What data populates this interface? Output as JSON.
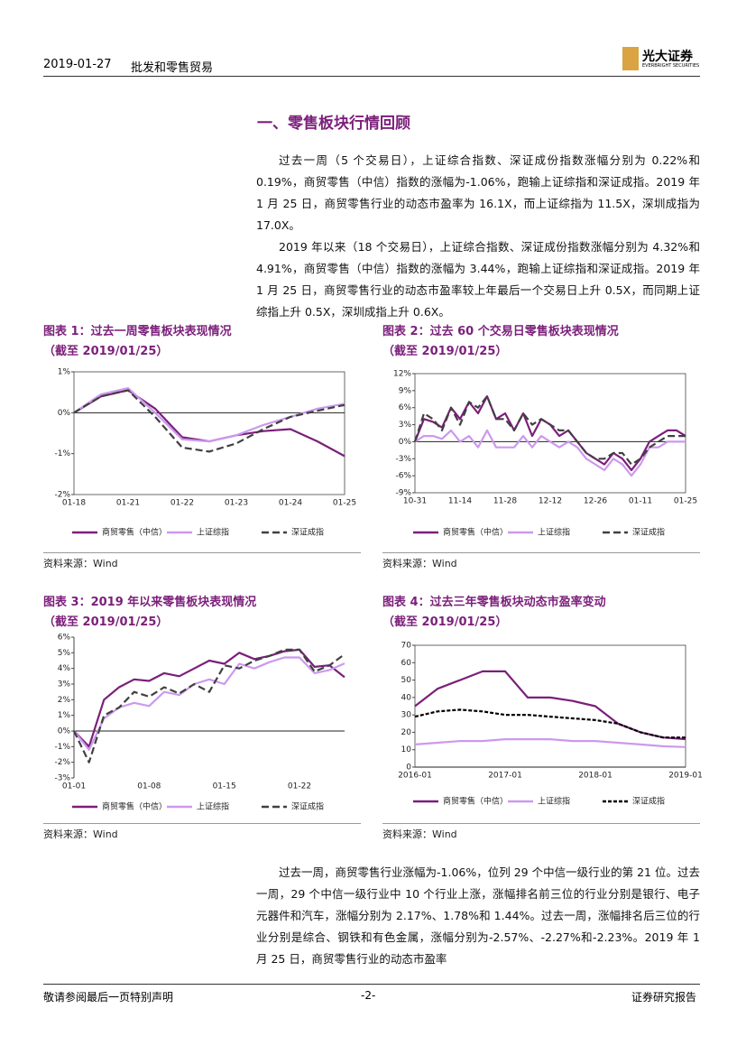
{
  "header": {
    "date": "2019-01-27",
    "sector": "批发和零售贸易",
    "logo": "光大证券",
    "logo_en": "EVERBRIGHT SECURITIES"
  },
  "section": {
    "title": "一、零售板块行情回顾"
  },
  "paragraphs": [
    "过去一周（5 个交易日），上证综合指数、深证成份指数涨幅分别为 0.22%和 0.19%，商贸零售（中信）指数的涨幅为-1.06%，跑输上证综指和深证成指。2019 年 1 月 25 日，商贸零售行业的动态市盈率为 16.1X，而上证综指为 11.5X，深圳成指为 17.0X。",
    "2019 年以来（18 个交易日），上证综合指数、深证成份指数涨幅分别为 4.32%和 4.91%，商贸零售（中信）指数的涨幅为 3.44%，跑输上证综指和深证成指。2019 年 1 月 25 日，商贸零售行业的动态市盈率较上年最后一个交易日上升 0.5X，而同期上证综指上升 0.5X，深圳成指上升 0.6X。",
    "过去一周，商贸零售行业涨幅为-1.06%，位列 29 个中信一级行业的第 21 位。过去一周，29 个中信一级行业中 10 个行业上涨，涨幅排名前三位的行业分别是银行、电子元器件和汽车，涨幅分别为 2.17%、1.78%和 1.44%。过去一周，涨幅排名后三位的行业分别是综合、钢铁和有色金属，涨幅分别为-2.57%、-2.27%和-2.23%。2019 年 1 月 25 日，商贸零售行业的动态市盈率"
  ],
  "chart_data": [
    {
      "type": "line",
      "title": "图表 1：过去一周零售板块表现情况",
      "subtitle": "（截至 2019/01/25）",
      "source": "资料来源：Wind",
      "frame": true,
      "categories": [
        "01-18",
        null,
        "01-21",
        null,
        "01-22",
        null,
        "01-23",
        null,
        "01-24",
        null,
        "01-25"
      ],
      "ylim": [
        -2,
        1
      ],
      "yticks": [
        {
          "value": -2,
          "label": "-2%"
        },
        {
          "value": -1,
          "label": "-1%"
        },
        {
          "value": 0,
          "label": "0%"
        },
        {
          "value": 1,
          "label": "1%"
        }
      ],
      "series": [
        {
          "name": "商贸零售（中信）",
          "color": "#7b1f7a",
          "style": "solid",
          "values": [
            0,
            0.4,
            0.55,
            0.1,
            -0.6,
            -0.7,
            -0.55,
            -0.45,
            -0.4,
            -0.7,
            -1.06
          ]
        },
        {
          "name": "上证综指",
          "color": "#cc99ee",
          "style": "solid",
          "values": [
            0,
            0.45,
            0.6,
            0,
            -0.65,
            -0.7,
            -0.55,
            -0.3,
            -0.1,
            0.1,
            0.22
          ]
        },
        {
          "name": "深证成指",
          "color": "#404040",
          "style": "dashed",
          "values": [
            0,
            0.4,
            0.55,
            -0.1,
            -0.85,
            -0.95,
            -0.75,
            -0.4,
            -0.1,
            0.05,
            0.19
          ]
        }
      ]
    },
    {
      "type": "line",
      "title": "图表 2：过去 60 个交易日零售板块表现情况",
      "subtitle": "（截至 2019/01/25）",
      "source": "资料来源：Wind",
      "frame": true,
      "categories": [
        "10-31",
        null,
        null,
        null,
        null,
        "11-14",
        null,
        null,
        null,
        null,
        "11-28",
        null,
        null,
        null,
        null,
        "12-12",
        null,
        null,
        null,
        null,
        "12-26",
        null,
        null,
        null,
        null,
        "01-11",
        null,
        null,
        null,
        null,
        "01-25"
      ],
      "ylim": [
        -9,
        12
      ],
      "yticks": [
        {
          "value": -9,
          "label": "-9%"
        },
        {
          "value": -6,
          "label": "-6%"
        },
        {
          "value": -3,
          "label": "-3%"
        },
        {
          "value": 0,
          "label": "0%"
        },
        {
          "value": 3,
          "label": "3%"
        },
        {
          "value": 6,
          "label": "6%"
        },
        {
          "value": 9,
          "label": "9%"
        },
        {
          "value": 12,
          "label": "12%"
        }
      ],
      "series": [
        {
          "name": "商贸零售（中信）",
          "color": "#7b1f7a",
          "style": "solid",
          "values": [
            0,
            4,
            3.5,
            2.5,
            6,
            4,
            7,
            5,
            8,
            4,
            5,
            2,
            5,
            1,
            4,
            3,
            1,
            2,
            0,
            -2,
            -3,
            -4,
            -2,
            -3,
            -5,
            -3,
            0,
            1,
            2,
            2,
            1
          ]
        },
        {
          "name": "上证综指",
          "color": "#cc99ee",
          "style": "solid",
          "values": [
            0,
            1,
            1,
            0.5,
            2,
            0,
            1,
            -1,
            2,
            -1,
            -1,
            -1,
            1,
            -1,
            1,
            0,
            -1,
            0,
            -1,
            -3,
            -4,
            -5,
            -3,
            -4,
            -6,
            -4,
            -1,
            -1,
            0,
            0,
            0
          ]
        },
        {
          "name": "深证成指",
          "color": "#404040",
          "style": "dashed",
          "values": [
            0,
            5,
            4,
            2,
            6,
            3,
            7,
            6,
            8,
            4,
            4,
            2,
            5,
            3,
            4,
            3,
            2,
            2,
            0,
            -2,
            -3,
            -3,
            -2,
            -2,
            -4,
            -3,
            -1,
            0,
            1,
            1,
            1
          ]
        }
      ]
    },
    {
      "type": "line",
      "title": "图表 3：2019 年以来零售板块表现情况",
      "subtitle": "（截至 2019/01/25）",
      "source": "资料来源：Wind",
      "frame": false,
      "categories": [
        "01-01",
        null,
        null,
        null,
        null,
        "01-08",
        null,
        null,
        null,
        null,
        "01-15",
        null,
        null,
        null,
        null,
        "01-22",
        null,
        null,
        null
      ],
      "ylim": [
        -3,
        6
      ],
      "yticks": [
        {
          "value": -3,
          "label": "-3%"
        },
        {
          "value": -2,
          "label": "-2%"
        },
        {
          "value": -1,
          "label": "-1%"
        },
        {
          "value": 0,
          "label": "0%"
        },
        {
          "value": 1,
          "label": "1%"
        },
        {
          "value": 2,
          "label": "2%"
        },
        {
          "value": 3,
          "label": "3%"
        },
        {
          "value": 4,
          "label": "4%"
        },
        {
          "value": 5,
          "label": "5%"
        },
        {
          "value": 6,
          "label": "6%"
        }
      ],
      "series": [
        {
          "name": "商贸零售（中信）",
          "color": "#7b1f7a",
          "style": "solid",
          "values": [
            0,
            -1,
            2,
            2.8,
            3.3,
            3.2,
            3.7,
            3.5,
            4,
            4.5,
            4.3,
            5,
            4.6,
            4.8,
            5.1,
            5.2,
            4.1,
            4.2,
            3.44
          ]
        },
        {
          "name": "上证综指",
          "color": "#cc99ee",
          "style": "solid",
          "values": [
            0,
            -1.2,
            0.8,
            1.5,
            1.8,
            1.6,
            2.5,
            2.3,
            3,
            3.3,
            3,
            4.3,
            4,
            4.4,
            4.7,
            4.7,
            3.7,
            3.9,
            4.32
          ]
        },
        {
          "name": "深证成指",
          "color": "#404040",
          "style": "dashed",
          "values": [
            0,
            -2,
            1,
            1.5,
            2.5,
            2.2,
            2.8,
            2.4,
            3,
            2.5,
            4.2,
            4,
            4.5,
            4.8,
            5.2,
            5.2,
            3.8,
            4.2,
            4.91
          ]
        }
      ]
    },
    {
      "type": "line",
      "title": "图表 4：过去三年零售板块动态市盈率变动",
      "subtitle": "（截至 2019/01/25）",
      "source": "资料来源：Wind",
      "frame": true,
      "categories": [
        "2016-01",
        null,
        null,
        null,
        "2017-01",
        null,
        null,
        null,
        "2018-01",
        null,
        null,
        null,
        "2019-01"
      ],
      "ylim": [
        0,
        70
      ],
      "yticks": [
        0,
        10,
        20,
        30,
        40,
        50,
        60,
        70
      ],
      "series": [
        {
          "name": "商贸零售（中信）",
          "color": "#7b1f7a",
          "style": "solid",
          "values": [
            35,
            45,
            50,
            55,
            55,
            40,
            40,
            38,
            35,
            25,
            20,
            17,
            16.1
          ]
        },
        {
          "name": "上证综指",
          "color": "#cc99ee",
          "style": "solid",
          "values": [
            13,
            14,
            15,
            15,
            16,
            16,
            16,
            15,
            15,
            14,
            13,
            12,
            11.5
          ]
        },
        {
          "name": "深证成指",
          "color": "#000000",
          "style": "dotted",
          "values": [
            29,
            32,
            33,
            32,
            30,
            30,
            29,
            28,
            27,
            25,
            20,
            17,
            17
          ]
        }
      ]
    }
  ],
  "footer": {
    "left": "敬请参阅最后一页特别声明",
    "page": "-2-",
    "right": "证券研究报告"
  }
}
